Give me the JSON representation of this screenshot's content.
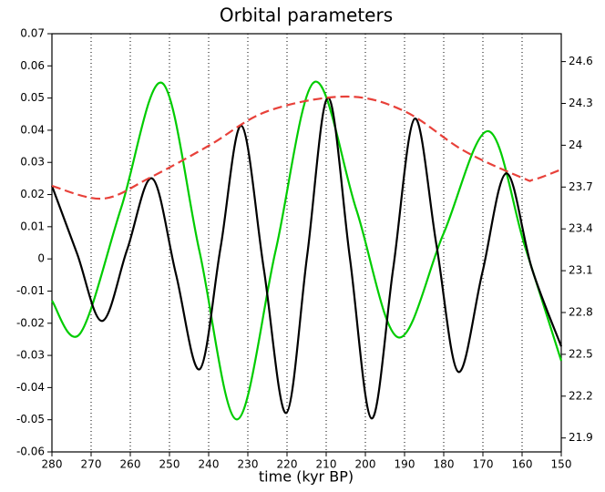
{
  "chart_data": {
    "type": "line",
    "title": "Orbital parameters",
    "x_label": "time (kyr BP)",
    "xlim": [
      280,
      150
    ],
    "xticks": [
      280,
      270,
      260,
      250,
      240,
      230,
      220,
      210,
      200,
      190,
      180,
      170,
      160,
      150
    ],
    "ylim": [
      -0.06,
      0.07
    ],
    "yticks": [
      0.07,
      0.06,
      0.05,
      0.04,
      0.03,
      0.02,
      0.01,
      0,
      -0.01,
      -0.02,
      -0.03,
      -0.04,
      -0.05,
      -0.06
    ],
    "y2lim": [
      21.8,
      24.8
    ],
    "y2ticks": [
      24.6,
      24.3,
      24,
      23.7,
      23.4,
      23.1,
      22.8,
      22.5,
      22.2,
      21.9
    ],
    "grid": "x",
    "series": [
      {
        "color": "#00cc00",
        "dash": false,
        "x": [
          280,
          272.8,
          262.35,
          251.9,
          242.35,
          232.8,
          222.9,
          213.0,
          202.3,
          191.6,
          180.1,
          168.6,
          159.3,
          150
        ],
        "values": [
          -0.013,
          -0.0232,
          0.0158,
          0.0547,
          0.0024,
          -0.0499,
          0.0026,
          0.055,
          0.0153,
          -0.0244,
          0.0077,
          0.0397,
          0.004,
          -0.0317
        ]
      },
      {
        "color": "#000000",
        "dash": false,
        "x": [
          280,
          273.6,
          267.2,
          260.8,
          254.4,
          248.35,
          242.3,
          236.95,
          231.6,
          225.9,
          220.2,
          214.85,
          209.5,
          203.95,
          198.4,
          192.9,
          187.4,
          181.85,
          176.3,
          170.15,
          164.0,
          157.5,
          150
        ],
        "values": [
          0.0227,
          0.0017,
          -0.0193,
          0.0029,
          0.025,
          -0.0047,
          -0.0343,
          0.0036,
          0.0414,
          -0.0033,
          -0.0479,
          0.0011,
          0.0501,
          0.0003,
          -0.0496,
          -0.003,
          0.0436,
          0.0043,
          -0.0351,
          -0.0043,
          0.0266,
          -0.003,
          -0.0272
        ]
      },
      {
        "color": "#e8413a",
        "dash": true,
        "axis": "y2",
        "x": [
          280,
          267,
          255,
          240,
          225,
          205,
          190,
          175,
          160,
          157,
          150
        ],
        "values": [
          23.708,
          23.617,
          23.767,
          23.996,
          24.244,
          24.349,
          24.244,
          23.963,
          23.767,
          23.754,
          23.826
        ]
      }
    ]
  }
}
